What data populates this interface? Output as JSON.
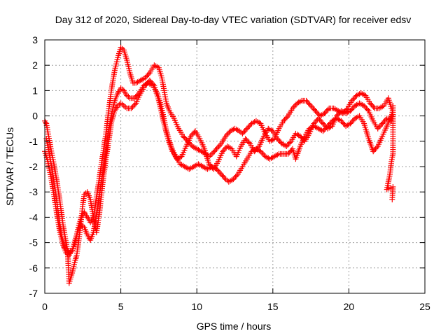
{
  "chart_data": {
    "type": "scatter",
    "title": "Day 312 of 2020, Sidereal Day-to-day VTEC variation (SDTVAR) for receiver edsv",
    "xlabel": "GPS time / hours",
    "ylabel": "SDTVAR / TECUs",
    "xlim": [
      0,
      25
    ],
    "ylim": [
      -7,
      3
    ],
    "xticks": [
      0,
      5,
      10,
      15,
      20,
      25
    ],
    "yticks": [
      -7,
      -6,
      -5,
      -4,
      -3,
      -2,
      -1,
      0,
      1,
      2,
      3
    ],
    "grid": true,
    "legend": "none",
    "marker": "plus",
    "color": "#ff0000",
    "series": [
      {
        "values": [
          [
            0.0,
            -0.2
          ],
          [
            0.1,
            -0.3
          ],
          [
            0.25,
            -0.8
          ],
          [
            0.4,
            -1.3
          ],
          [
            0.6,
            -1.9
          ],
          [
            0.8,
            -2.6
          ],
          [
            1.0,
            -3.4
          ],
          [
            1.2,
            -4.3
          ],
          [
            1.4,
            -5.0
          ],
          [
            1.5,
            -5.3
          ],
          [
            1.6,
            -5.4
          ],
          [
            1.8,
            -5.3
          ],
          [
            2.0,
            -5.0
          ],
          [
            2.2,
            -4.4
          ],
          [
            2.4,
            -4.0
          ],
          [
            2.6,
            -3.8
          ],
          [
            2.8,
            -4.0
          ],
          [
            3.0,
            -4.2
          ],
          [
            3.2,
            -4.0
          ],
          [
            3.4,
            -3.2
          ],
          [
            3.6,
            -2.4
          ],
          [
            3.8,
            -1.6
          ],
          [
            4.0,
            -0.8
          ],
          [
            4.2,
            0.2
          ],
          [
            4.4,
            1.1
          ],
          [
            4.6,
            1.8
          ],
          [
            4.8,
            2.3
          ],
          [
            5.0,
            2.7
          ],
          [
            5.2,
            2.6
          ],
          [
            5.4,
            2.2
          ],
          [
            5.6,
            1.7
          ],
          [
            5.8,
            1.3
          ],
          [
            6.0,
            1.3
          ],
          [
            6.3,
            1.4
          ],
          [
            6.6,
            1.5
          ],
          [
            6.9,
            1.7
          ],
          [
            7.2,
            2.0
          ],
          [
            7.5,
            1.9
          ],
          [
            7.7,
            1.5
          ],
          [
            8.0,
            0.5
          ],
          [
            8.2,
            0.2
          ],
          [
            8.5,
            -0.1
          ],
          [
            8.8,
            -0.5
          ],
          [
            9.1,
            -0.8
          ],
          [
            9.4,
            -1.0
          ],
          [
            9.7,
            -1.2
          ],
          [
            10.0,
            -1.3
          ],
          [
            10.3,
            -1.4
          ],
          [
            10.6,
            -1.5
          ],
          [
            10.8,
            -1.6
          ],
          [
            11.0,
            -1.5
          ],
          [
            11.3,
            -1.3
          ],
          [
            11.6,
            -1.1
          ],
          [
            11.9,
            -0.8
          ],
          [
            12.2,
            -0.6
          ],
          [
            12.5,
            -0.5
          ],
          [
            12.8,
            -0.6
          ],
          [
            13.0,
            -0.7
          ],
          [
            13.3,
            -0.5
          ],
          [
            13.6,
            -0.3
          ],
          [
            13.9,
            -0.2
          ],
          [
            14.2,
            -0.3
          ],
          [
            14.5,
            -0.7
          ],
          [
            14.8,
            -1.0
          ],
          [
            15.1,
            -0.9
          ],
          [
            15.4,
            -0.5
          ],
          [
            15.7,
            -0.2
          ],
          [
            16.0,
            0.0
          ],
          [
            16.3,
            0.3
          ],
          [
            16.6,
            0.5
          ],
          [
            16.9,
            0.6
          ],
          [
            17.2,
            0.6
          ],
          [
            17.5,
            0.4
          ],
          [
            17.8,
            0.2
          ],
          [
            18.1,
            0.0
          ],
          [
            18.4,
            0.1
          ],
          [
            18.7,
            0.3
          ],
          [
            19.0,
            0.3
          ],
          [
            19.3,
            0.2
          ],
          [
            19.6,
            0.1
          ],
          [
            19.9,
            0.3
          ],
          [
            20.2,
            0.6
          ],
          [
            20.5,
            0.8
          ],
          [
            20.8,
            0.9
          ],
          [
            21.1,
            0.8
          ],
          [
            21.4,
            0.5
          ],
          [
            21.7,
            0.3
          ],
          [
            22.0,
            0.3
          ],
          [
            22.3,
            0.4
          ],
          [
            22.6,
            0.7
          ],
          [
            22.8,
            0.3
          ]
        ]
      },
      {
        "values": [
          [
            0.0,
            -1.4
          ],
          [
            0.2,
            -1.8
          ],
          [
            0.4,
            -2.4
          ],
          [
            0.6,
            -3.1
          ],
          [
            0.8,
            -3.9
          ],
          [
            1.0,
            -4.6
          ],
          [
            1.2,
            -5.1
          ],
          [
            1.4,
            -5.4
          ],
          [
            1.6,
            -5.5
          ],
          [
            1.8,
            -5.3
          ],
          [
            2.0,
            -4.9
          ],
          [
            2.2,
            -4.5
          ],
          [
            2.4,
            -4.3
          ],
          [
            2.6,
            -4.4
          ],
          [
            2.8,
            -4.7
          ],
          [
            3.0,
            -4.9
          ],
          [
            3.2,
            -4.6
          ],
          [
            3.4,
            -3.9
          ],
          [
            3.6,
            -3.1
          ],
          [
            3.8,
            -2.3
          ],
          [
            4.0,
            -1.5
          ],
          [
            4.2,
            -0.6
          ],
          [
            4.4,
            0.1
          ],
          [
            4.6,
            0.6
          ],
          [
            4.8,
            0.9
          ],
          [
            5.0,
            1.1
          ],
          [
            5.2,
            1.0
          ],
          [
            5.4,
            0.8
          ],
          [
            5.6,
            0.7
          ],
          [
            5.9,
            0.7
          ],
          [
            6.2,
            0.9
          ],
          [
            6.5,
            1.2
          ],
          [
            6.8,
            1.3
          ],
          [
            7.1,
            1.2
          ],
          [
            7.4,
            0.9
          ],
          [
            7.7,
            0.3
          ],
          [
            8.0,
            -0.6
          ],
          [
            8.3,
            -1.2
          ],
          [
            8.6,
            -1.6
          ],
          [
            8.9,
            -1.9
          ],
          [
            9.2,
            -2.0
          ],
          [
            9.5,
            -2.1
          ],
          [
            9.8,
            -2.0
          ],
          [
            10.1,
            -1.9
          ],
          [
            10.4,
            -2.0
          ],
          [
            10.7,
            -2.1
          ],
          [
            11.0,
            -2.0
          ],
          [
            11.3,
            -2.1
          ],
          [
            11.6,
            -2.3
          ],
          [
            11.9,
            -2.5
          ],
          [
            12.1,
            -2.6
          ],
          [
            12.4,
            -2.5
          ],
          [
            12.7,
            -2.3
          ],
          [
            13.0,
            -2.0
          ],
          [
            13.3,
            -1.7
          ],
          [
            13.6,
            -1.4
          ],
          [
            13.9,
            -1.3
          ],
          [
            14.2,
            -1.4
          ],
          [
            14.5,
            -1.6
          ],
          [
            14.8,
            -1.7
          ],
          [
            15.1,
            -1.6
          ],
          [
            15.4,
            -1.5
          ],
          [
            15.7,
            -1.5
          ],
          [
            16.0,
            -1.5
          ],
          [
            16.3,
            -1.3
          ],
          [
            16.5,
            -1.7
          ],
          [
            16.8,
            -1.2
          ],
          [
            17.1,
            -0.8
          ],
          [
            17.4,
            -0.5
          ],
          [
            17.7,
            -0.4
          ],
          [
            18.0,
            -0.5
          ],
          [
            18.3,
            -0.6
          ],
          [
            18.6,
            -0.4
          ],
          [
            18.9,
            -0.2
          ],
          [
            19.2,
            -0.1
          ],
          [
            19.5,
            -0.2
          ],
          [
            19.8,
            -0.4
          ],
          [
            20.1,
            -0.3
          ],
          [
            20.4,
            -0.1
          ],
          [
            20.7,
            0.0
          ],
          [
            21.0,
            -0.3
          ],
          [
            21.3,
            -0.9
          ],
          [
            21.6,
            -1.4
          ],
          [
            21.9,
            -1.2
          ],
          [
            22.2,
            -0.8
          ],
          [
            22.5,
            -0.4
          ],
          [
            22.8,
            0.0
          ]
        ]
      },
      {
        "values": [
          [
            0.1,
            -0.9
          ],
          [
            0.3,
            -1.5
          ],
          [
            0.5,
            -2.2
          ],
          [
            0.7,
            -3.0
          ],
          [
            0.9,
            -3.9
          ],
          [
            1.1,
            -4.7
          ],
          [
            1.3,
            -5.2
          ],
          [
            1.5,
            -5.3
          ],
          [
            1.6,
            -6.6
          ],
          [
            1.8,
            -6.2
          ],
          [
            2.0,
            -5.7
          ],
          [
            2.1,
            -5.5
          ],
          [
            2.3,
            -4.6
          ],
          [
            2.5,
            -3.5
          ],
          [
            2.6,
            -3.1
          ],
          [
            2.8,
            -3.0
          ],
          [
            3.0,
            -3.3
          ],
          [
            3.2,
            -4.0
          ],
          [
            3.4,
            -4.6
          ],
          [
            3.6,
            -3.8
          ],
          [
            3.8,
            -2.7
          ],
          [
            4.0,
            -1.8
          ],
          [
            4.2,
            -1.0
          ],
          [
            4.4,
            -0.2
          ],
          [
            4.6,
            0.2
          ],
          [
            4.8,
            0.4
          ],
          [
            5.0,
            0.5
          ],
          [
            5.2,
            0.4
          ],
          [
            5.4,
            0.3
          ],
          [
            5.7,
            0.3
          ],
          [
            6.0,
            0.5
          ],
          [
            6.3,
            0.9
          ],
          [
            6.6,
            1.2
          ],
          [
            6.9,
            1.4
          ],
          [
            7.2,
            1.2
          ],
          [
            7.5,
            0.6
          ],
          [
            7.8,
            -0.2
          ],
          [
            8.1,
            -0.9
          ],
          [
            8.4,
            -1.4
          ],
          [
            8.7,
            -1.7
          ],
          [
            9.0,
            -1.6
          ],
          [
            9.3,
            -1.2
          ],
          [
            9.6,
            -0.8
          ],
          [
            9.9,
            -0.6
          ],
          [
            10.2,
            -0.9
          ],
          [
            10.5,
            -1.3
          ],
          [
            10.8,
            -1.9
          ],
          [
            11.1,
            -2.1
          ],
          [
            11.4,
            -1.8
          ],
          [
            11.7,
            -1.4
          ],
          [
            12.0,
            -1.2
          ],
          [
            12.3,
            -1.3
          ],
          [
            12.6,
            -1.6
          ],
          [
            12.9,
            -1.2
          ],
          [
            13.2,
            -0.9
          ],
          [
            13.5,
            -1.1
          ],
          [
            13.8,
            -1.4
          ],
          [
            14.1,
            -1.2
          ],
          [
            14.4,
            -0.8
          ],
          [
            14.7,
            -0.5
          ],
          [
            15.0,
            -0.6
          ],
          [
            15.3,
            -0.9
          ],
          [
            15.6,
            -1.1
          ],
          [
            15.9,
            -1.2
          ],
          [
            16.2,
            -1.0
          ],
          [
            16.5,
            -0.7
          ],
          [
            16.8,
            -0.8
          ],
          [
            17.1,
            -1.0
          ],
          [
            17.4,
            -0.7
          ],
          [
            17.7,
            -0.3
          ],
          [
            18.0,
            -0.1
          ],
          [
            18.3,
            -0.3
          ],
          [
            18.6,
            -0.5
          ],
          [
            18.9,
            -0.4
          ],
          [
            19.2,
            0.0
          ],
          [
            19.5,
            0.2
          ],
          [
            19.8,
            0.1
          ],
          [
            20.1,
            0.2
          ],
          [
            20.4,
            0.4
          ],
          [
            20.7,
            0.5
          ],
          [
            21.0,
            0.4
          ],
          [
            21.3,
            0.2
          ],
          [
            21.6,
            -0.2
          ],
          [
            21.9,
            -0.5
          ],
          [
            22.2,
            -0.3
          ],
          [
            22.5,
            -0.1
          ],
          [
            22.8,
            -0.2
          ],
          [
            22.9,
            0.4
          ],
          [
            22.9,
            -1.5
          ],
          [
            22.8,
            -1.8
          ],
          [
            22.7,
            -2.3
          ],
          [
            22.6,
            -2.6
          ],
          [
            22.5,
            -2.9
          ],
          [
            22.9,
            -2.8
          ],
          [
            22.85,
            -3.3
          ]
        ]
      }
    ]
  }
}
